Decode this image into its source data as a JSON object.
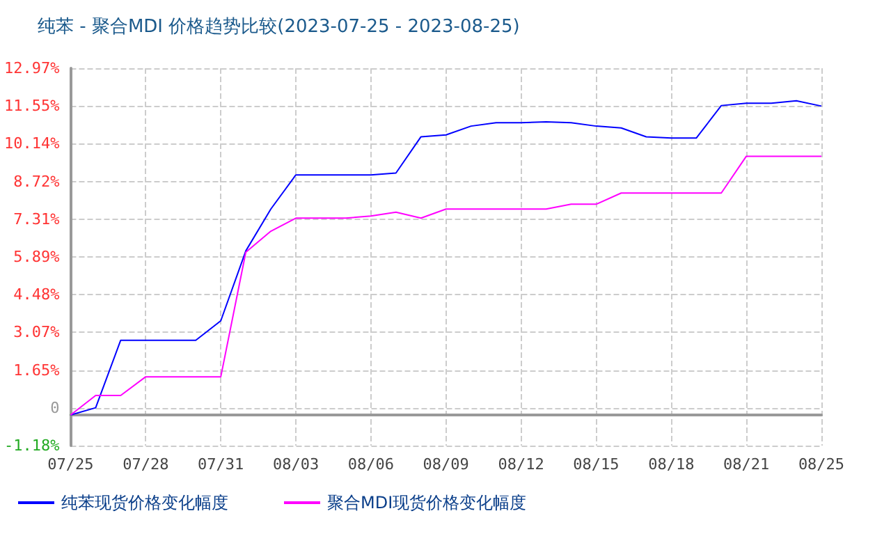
{
  "chart_data": {
    "type": "line",
    "title": "纯苯 - 聚合MDI 价格趋势比较(2023-07-25 - 2023-08-25)",
    "categories": [
      "07/25",
      null,
      null,
      "07/28",
      null,
      null,
      "07/31",
      null,
      null,
      "08/03",
      null,
      null,
      "08/06",
      null,
      null,
      "08/09",
      null,
      null,
      "08/12",
      null,
      null,
      "08/15",
      null,
      null,
      "08/18",
      null,
      null,
      "08/21",
      null,
      null,
      "08/25"
    ],
    "series": [
      {
        "name": "纯苯现货价格变化幅度",
        "color": "#0000ff",
        "values": [
          -0.03,
          0.24,
          2.77,
          2.77,
          2.77,
          2.77,
          3.5,
          6.12,
          7.69,
          8.97,
          8.97,
          8.97,
          8.97,
          9.04,
          10.4,
          10.47,
          10.8,
          10.93,
          10.93,
          10.96,
          10.93,
          10.8,
          10.73,
          10.4,
          10.35,
          10.35,
          11.57,
          11.66,
          11.66,
          11.75,
          11.55
        ]
      },
      {
        "name": "聚合MDI现货价格变化幅度",
        "color": "#ff00ff",
        "values": [
          -0.03,
          0.7,
          0.7,
          1.4,
          1.4,
          1.4,
          1.4,
          6.07,
          6.86,
          7.35,
          7.35,
          7.35,
          7.43,
          7.57,
          7.35,
          7.69,
          7.69,
          7.69,
          7.69,
          7.69,
          7.87,
          7.87,
          8.29,
          8.29,
          8.29,
          8.29,
          8.29,
          9.67,
          9.67,
          9.67,
          9.67
        ]
      }
    ],
    "ylim": [
      -1.18,
      12.97
    ],
    "yticks": [
      {
        "value": -1.18,
        "label": "-1.18%"
      },
      {
        "value": 0.24,
        "label": "0"
      },
      {
        "value": 1.65,
        "label": "1.65%"
      },
      {
        "value": 3.07,
        "label": "3.07%"
      },
      {
        "value": 4.48,
        "label": "4.48%"
      },
      {
        "value": 5.89,
        "label": "5.89%"
      },
      {
        "value": 7.31,
        "label": "7.31%"
      },
      {
        "value": 8.72,
        "label": "8.72%"
      },
      {
        "value": 10.14,
        "label": "10.14%"
      },
      {
        "value": 11.55,
        "label": "11.55%"
      },
      {
        "value": 12.97,
        "label": "12.97%"
      }
    ],
    "grid": true,
    "legend": "bottom",
    "marker": "none",
    "line_style": "solid"
  }
}
